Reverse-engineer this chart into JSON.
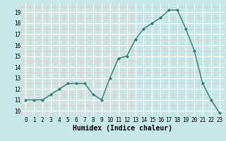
{
  "x": [
    0,
    1,
    2,
    3,
    4,
    5,
    6,
    7,
    8,
    9,
    10,
    11,
    12,
    13,
    14,
    15,
    16,
    17,
    18,
    19,
    20,
    21,
    22,
    23
  ],
  "y": [
    11.0,
    11.0,
    11.0,
    11.5,
    12.0,
    12.5,
    12.5,
    12.5,
    11.5,
    11.0,
    13.0,
    14.8,
    15.0,
    16.5,
    17.5,
    18.0,
    18.5,
    19.2,
    19.2,
    17.5,
    15.5,
    12.5,
    11.0,
    9.8
  ],
  "line_color": "#2e7d6e",
  "marker": "D",
  "marker_size": 2.0,
  "linewidth": 1.0,
  "bg_color": "#c8e8e8",
  "grid_color": "#ffffff",
  "grid_minor_color": "#d8f0f0",
  "xlabel": "Humidex (Indice chaleur)",
  "xlabel_fontsize": 7,
  "ylim": [
    9.5,
    19.8
  ],
  "yticks": [
    10,
    11,
    12,
    13,
    14,
    15,
    16,
    17,
    18,
    19
  ],
  "xticks": [
    0,
    1,
    2,
    3,
    4,
    5,
    6,
    7,
    8,
    9,
    10,
    11,
    12,
    13,
    14,
    15,
    16,
    17,
    18,
    19,
    20,
    21,
    22,
    23
  ],
  "tick_fontsize": 5.5
}
